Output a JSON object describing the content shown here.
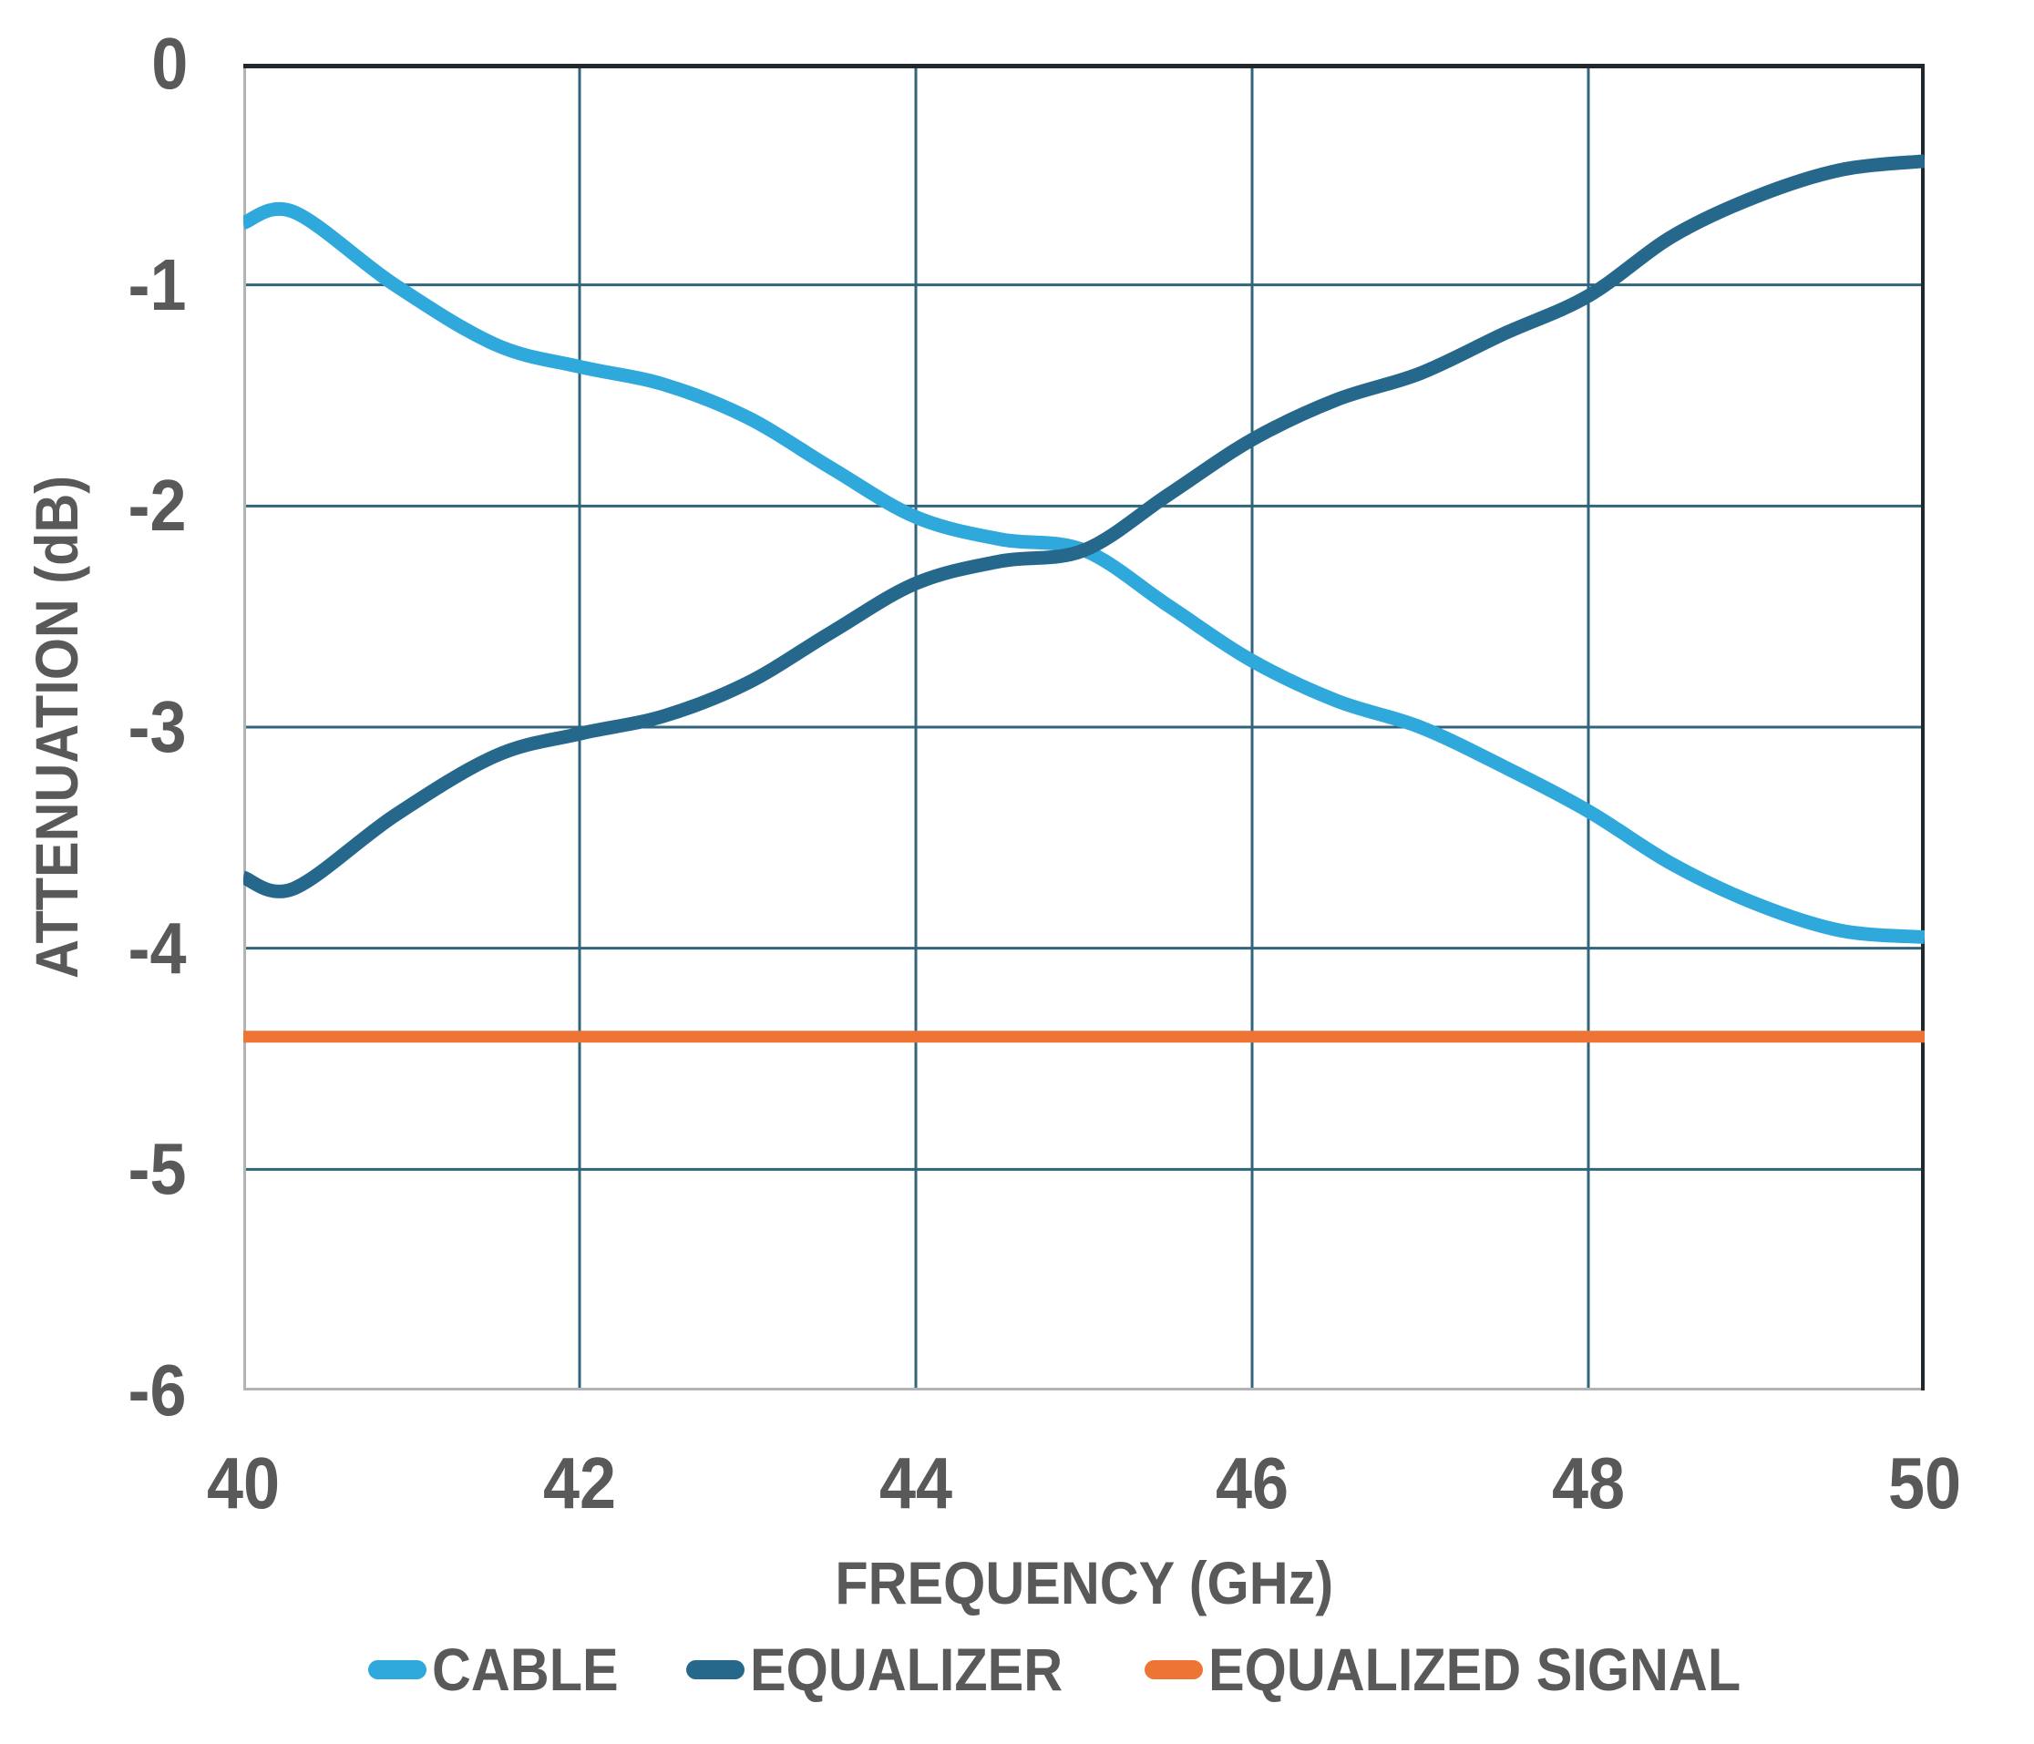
{
  "figure": {
    "background": "#ffffff",
    "text_color": "#595959",
    "gridline_color": "#30657C",
    "border_dark_color": "#20282D",
    "border_light_color": "#B3B3B3"
  },
  "chart_data": {
    "type": "line",
    "title": "",
    "xlabel": "FREQUENCY (GHz)",
    "ylabel": "ATTENUATION (dB)",
    "xlim": [
      40,
      50
    ],
    "ylim": [
      -6,
      0
    ],
    "x_ticks": [
      40,
      42,
      44,
      46,
      48,
      50
    ],
    "y_ticks": [
      0,
      -1,
      -2,
      -3,
      -4,
      -5,
      -6
    ],
    "grid": true,
    "legend_position": "bottom",
    "series": [
      {
        "name": "CABLE",
        "color": "#2FA8DC",
        "stroke_width": 15,
        "x": [
          40.0,
          40.3,
          40.9,
          41.5,
          42.0,
          42.5,
          43.0,
          43.5,
          44.0,
          44.5,
          45.0,
          45.5,
          46.0,
          46.5,
          47.0,
          47.5,
          48.0,
          48.5,
          49.0,
          49.5,
          50.0
        ],
        "values": [
          -0.72,
          -0.67,
          -1.0,
          -1.27,
          -1.37,
          -1.45,
          -1.6,
          -1.83,
          -2.05,
          -2.15,
          -2.2,
          -2.45,
          -2.7,
          -2.88,
          -3.0,
          -3.18,
          -3.38,
          -3.62,
          -3.8,
          -3.92,
          -3.95
        ]
      },
      {
        "name": "EQUALIZER",
        "color": "#26688C",
        "stroke_width": 15,
        "x": [
          40.0,
          40.3,
          40.9,
          41.5,
          42.0,
          42.5,
          43.0,
          43.5,
          44.0,
          44.5,
          45.0,
          45.5,
          46.0,
          46.5,
          47.0,
          47.5,
          48.0,
          48.5,
          49.0,
          49.5,
          50.0
        ],
        "values": [
          -3.68,
          -3.73,
          -3.4,
          -3.13,
          -3.03,
          -2.95,
          -2.8,
          -2.57,
          -2.35,
          -2.25,
          -2.2,
          -1.95,
          -1.7,
          -1.52,
          -1.4,
          -1.22,
          -1.05,
          -0.78,
          -0.6,
          -0.48,
          -0.44
        ]
      },
      {
        "name": "EQUALIZED SIGNAL",
        "color": "#ED7435",
        "stroke_width": 13,
        "x": [
          40,
          50
        ],
        "values": [
          -4.4,
          -4.4
        ]
      }
    ]
  }
}
